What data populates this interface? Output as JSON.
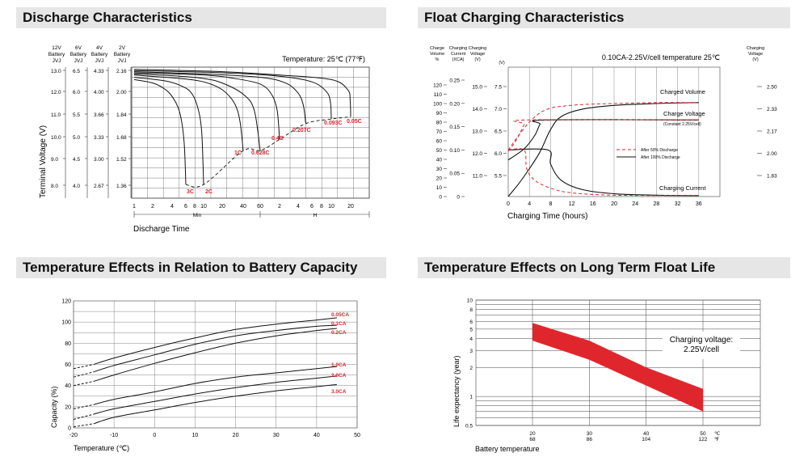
{
  "headers": {
    "discharge": "Discharge Characteristics",
    "float": "Float Charging Characteristics",
    "temp_capacity": "Temperature Effects in Relation to Battery Capacity",
    "float_life": "Temperature Effects on Long Term Float Life"
  },
  "chart_data": [
    {
      "id": "discharge",
      "type": "line",
      "title": "Discharge Characteristics",
      "ylabel": "Terminal Voltage (V)",
      "xlabel": "Discharge Time",
      "annotation": "Temperature: 25℃ (77℉)",
      "y_axis_columns": [
        {
          "header": [
            "12V",
            "Battery",
            "JVJ"
          ],
          "ticks": [
            "13.0",
            "12.0",
            "11.0",
            "10.0",
            "9.0",
            "8.0"
          ]
        },
        {
          "header": [
            "6V",
            "Battery",
            "JVJ"
          ],
          "ticks": [
            "6.5",
            "6.0",
            "5.5",
            "5.0",
            "4.5",
            "4.0"
          ]
        },
        {
          "header": [
            "4V",
            "Battery",
            "JVJ"
          ],
          "ticks": [
            "4.33",
            "4.00",
            "3.66",
            "3.33",
            "3.00",
            "2.67"
          ]
        },
        {
          "header": [
            "2V",
            "Battery",
            "JVJ"
          ],
          "ticks": [
            "2.16",
            "2.00",
            "1.84",
            "1.68",
            "1.52",
            "1.36"
          ]
        }
      ],
      "ylim": [
        7.5,
        13.3
      ],
      "x_ticks": [
        "1",
        "2",
        "4",
        "6",
        "8",
        "10",
        "20",
        "40",
        "60",
        "2",
        "4",
        "6",
        "8",
        "10",
        "20"
      ],
      "x_units": {
        "min": "Min",
        "h": "H"
      },
      "series": [
        {
          "name": "3C",
          "end_minutes": 6,
          "x": [
            1,
            2,
            3,
            4,
            5,
            5.7,
            6
          ],
          "y": [
            12.75,
            12.6,
            12.35,
            12.0,
            11.3,
            10.0,
            8.1
          ]
        },
        {
          "name": "2C",
          "end_minutes": 10,
          "x": [
            1,
            3,
            5,
            7,
            8.5,
            9.5,
            10
          ],
          "y": [
            12.85,
            12.7,
            12.5,
            12.2,
            11.6,
            10.5,
            8.1
          ]
        },
        {
          "name": "1C",
          "end_minutes": 40,
          "x": [
            1,
            5,
            10,
            20,
            30,
            36,
            40
          ],
          "y": [
            12.95,
            12.8,
            12.65,
            12.3,
            11.7,
            10.9,
            9.6
          ]
        },
        {
          "name": "0.628C",
          "end_minutes": 60,
          "x": [
            1,
            5,
            10,
            20,
            40,
            52,
            60
          ],
          "y": [
            13.0,
            12.9,
            12.8,
            12.6,
            12.1,
            11.4,
            9.6
          ]
        },
        {
          "name": "0.4C",
          "end_minutes": 120,
          "x": [
            1,
            10,
            30,
            60,
            90,
            110,
            120
          ],
          "y": [
            13.05,
            12.95,
            12.8,
            12.55,
            12.1,
            11.4,
            10.1
          ]
        },
        {
          "name": "0.207C",
          "end_minutes": 300,
          "x": [
            1,
            10,
            60,
            150,
            240,
            280,
            300
          ],
          "y": [
            13.1,
            13.0,
            12.85,
            12.6,
            12.15,
            11.6,
            10.8
          ]
        },
        {
          "name": "0.093C",
          "end_minutes": 600,
          "x": [
            1,
            20,
            120,
            360,
            540,
            590,
            600
          ],
          "y": [
            13.15,
            13.05,
            12.9,
            12.65,
            12.2,
            11.7,
            11.0
          ]
        },
        {
          "name": "0.05C",
          "end_minutes": 1200,
          "x": [
            1,
            20,
            120,
            600,
            1080,
            1180,
            1200
          ],
          "y": [
            13.2,
            13.1,
            12.95,
            12.75,
            12.3,
            11.8,
            11.1
          ]
        }
      ],
      "cutoff_dashed": {
        "x": [
          6,
          10,
          40,
          60,
          120,
          300,
          600,
          1200
        ],
        "y": [
          8.1,
          8.1,
          9.6,
          9.6,
          10.1,
          10.8,
          11.0,
          11.1
        ]
      }
    },
    {
      "id": "float",
      "type": "line",
      "title": "Float Charging Characteristics",
      "xlabel": "Charging Time (hours)",
      "annotation": "0.10CA-2.25V/cell  temperature 25℃",
      "axis_headers": [
        {
          "lines": [
            "Charge",
            "Volume",
            "%"
          ]
        },
        {
          "lines": [
            "Charging",
            "Current",
            "(XCA)"
          ]
        },
        {
          "lines": [
            "Charging",
            "Voltage",
            "(V)"
          ]
        },
        {
          "lines": [
            "(V)"
          ]
        },
        {
          "lines": [
            "Charging",
            "Voltage",
            "(V)"
          ]
        }
      ],
      "volume_ticks": [
        "120",
        "110",
        "100",
        "90",
        "80",
        "70",
        "60",
        "50",
        "40",
        "30",
        "20",
        "10",
        "0"
      ],
      "current_ticks": [
        "0.25",
        "0.20",
        "0.15",
        "0.10",
        "0.05",
        "0"
      ],
      "voltage12_ticks": [
        "15.0",
        "14.0",
        "13.0",
        "12.0",
        "11.0"
      ],
      "voltage6_ticks": [
        "7.5",
        "7.0",
        "6.5",
        "6.0",
        "5.5"
      ],
      "right_ticks": [
        "2.50",
        "2.33",
        "2.17",
        "2.00",
        "1.83"
      ],
      "x_ticks": [
        0,
        4,
        8,
        12,
        16,
        20,
        24,
        28,
        32,
        36
      ],
      "xlim": [
        0,
        40
      ],
      "labels": {
        "volume": "Charged Volume",
        "voltage": "Charge Voltage",
        "voltage_note": "(Constant 2.25V/cell)",
        "current": "Charging Current"
      },
      "legend": [
        "After  50% Discharge",
        "After 100% Discharge"
      ],
      "series": [
        {
          "name": "Charged Volume (100%)",
          "dash": false,
          "x": [
            0,
            2,
            4,
            6,
            8,
            10,
            14,
            20,
            28,
            36
          ],
          "y": [
            0,
            14,
            30,
            48,
            72,
            86,
            94,
            98,
            100,
            101
          ]
        },
        {
          "name": "Charged Volume (50%)",
          "dash": true,
          "x": [
            0,
            2,
            4,
            6,
            8,
            10,
            14,
            20,
            28,
            36
          ],
          "y": [
            50,
            66,
            80,
            90,
            95,
            97,
            99,
            100,
            101,
            101
          ]
        },
        {
          "name": "Charge Voltage (100%)",
          "dash": false,
          "x": [
            0,
            3,
            5,
            6,
            7,
            36
          ],
          "y": [
            11.7,
            12.2,
            12.8,
            13.3,
            13.5,
            13.5
          ]
        },
        {
          "name": "Charge Voltage (50%)",
          "dash": true,
          "x": [
            0,
            1,
            2,
            3,
            3.5,
            36
          ],
          "y": [
            12.1,
            12.4,
            12.8,
            13.3,
            13.5,
            13.5
          ]
        },
        {
          "name": "Charging Current (100%)",
          "dash": false,
          "x": [
            0,
            7.5,
            8,
            10,
            14,
            20,
            28,
            36
          ],
          "y": [
            0.1,
            0.1,
            0.07,
            0.035,
            0.015,
            0.006,
            0.003,
            0.002
          ]
        },
        {
          "name": "Charging Current (50%)",
          "dash": true,
          "x": [
            0,
            3,
            3.5,
            5,
            8,
            12,
            20,
            36
          ],
          "y": [
            0.1,
            0.1,
            0.06,
            0.035,
            0.018,
            0.008,
            0.003,
            0.002
          ]
        }
      ]
    },
    {
      "id": "temp_capacity",
      "type": "line",
      "title": "Temperature Effects in Relation to Battery Capacity",
      "xlabel": "Temperature (℃)",
      "ylabel": "Capacity (%)",
      "xlim": [
        -20,
        50
      ],
      "ylim": [
        0,
        120
      ],
      "x_ticks": [
        -20,
        -10,
        0,
        10,
        20,
        30,
        40,
        50
      ],
      "y_ticks": [
        0,
        20,
        40,
        60,
        80,
        100,
        120
      ],
      "series": [
        {
          "name": "0.05CA",
          "x": [
            -20,
            -15,
            -10,
            0,
            10,
            20,
            30,
            40,
            45
          ],
          "y": [
            56,
            60,
            66,
            76,
            85,
            93,
            98,
            102,
            104
          ]
        },
        {
          "name": "0.1CA",
          "x": [
            -20,
            -15,
            -10,
            0,
            10,
            20,
            30,
            40,
            45
          ],
          "y": [
            48,
            53,
            59,
            69,
            79,
            87,
            92,
            96,
            97
          ]
        },
        {
          "name": "0.2CA",
          "x": [
            -20,
            -15,
            -10,
            0,
            10,
            20,
            30,
            40,
            45
          ],
          "y": [
            40,
            44,
            50,
            61,
            71,
            80,
            87,
            92,
            94
          ]
        },
        {
          "name": "1.0CA",
          "x": [
            -20,
            -15,
            -10,
            0,
            10,
            20,
            30,
            40,
            45
          ],
          "y": [
            18,
            22,
            27,
            34,
            42,
            48,
            52,
            56,
            58
          ]
        },
        {
          "name": "2.0CA",
          "x": [
            -20,
            -15,
            -10,
            0,
            10,
            20,
            30,
            40,
            45
          ],
          "y": [
            8,
            13,
            18,
            25,
            32,
            38,
            43,
            47,
            49
          ]
        },
        {
          "name": "3.0CA",
          "x": [
            -20,
            -15,
            -10,
            0,
            10,
            20,
            30,
            40,
            45
          ],
          "y": [
            1,
            4,
            10,
            17,
            24,
            30,
            35,
            39,
            41
          ]
        }
      ],
      "dashed_below_x": -15
    },
    {
      "id": "float_life",
      "type": "area",
      "title": "Temperature Effects on Long Term Float Life",
      "ylabel": "Life expectancy (year)",
      "xlabel": "Battery temperature",
      "annotation": "Charging voltage:\n2.25V/cell",
      "scale": "log",
      "y_ticks": [
        "10",
        "8",
        "6",
        "5",
        "4",
        "3",
        "2",
        "1",
        "0.5"
      ],
      "y_values": [
        10,
        8,
        6,
        5,
        4,
        3,
        2,
        1,
        0.5
      ],
      "x_ticks_c": [
        "20",
        "30",
        "40",
        "50"
      ],
      "x_ticks_f": [
        "68",
        "86",
        "104",
        "122"
      ],
      "unit_c": "℃",
      "unit_f": "℉",
      "xlim": [
        20,
        50
      ],
      "band": {
        "x": [
          20,
          30,
          40,
          50
        ],
        "upper": [
          5.8,
          3.8,
          2.0,
          1.2
        ],
        "lower": [
          3.8,
          2.4,
          1.3,
          0.7
        ]
      }
    }
  ]
}
